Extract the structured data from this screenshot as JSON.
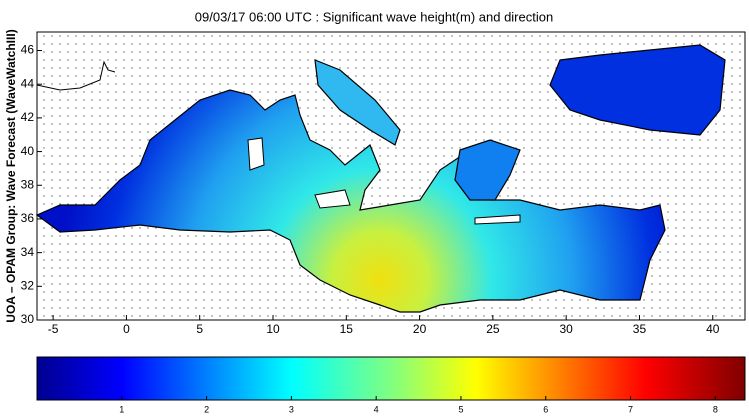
{
  "title": "09/03/17 06:00 UTC : Significant wave height(m) and direction",
  "y_label": "UOA – OPAM Group: Wave Forecast  (WaveWatchIII)",
  "map": {
    "xlim": [
      -6.1,
      42.2
    ],
    "xticks": [
      -5,
      0,
      5,
      10,
      15,
      20,
      25,
      30,
      35,
      40
    ],
    "ylim": [
      30,
      47.1
    ],
    "yticks": [
      30,
      32,
      34,
      36,
      38,
      40,
      42,
      44,
      46
    ]
  },
  "colorbar": {
    "lim": [
      0,
      8.35
    ],
    "ticks": [
      1,
      2,
      3,
      4,
      5,
      6,
      7,
      8
    ]
  }
}
